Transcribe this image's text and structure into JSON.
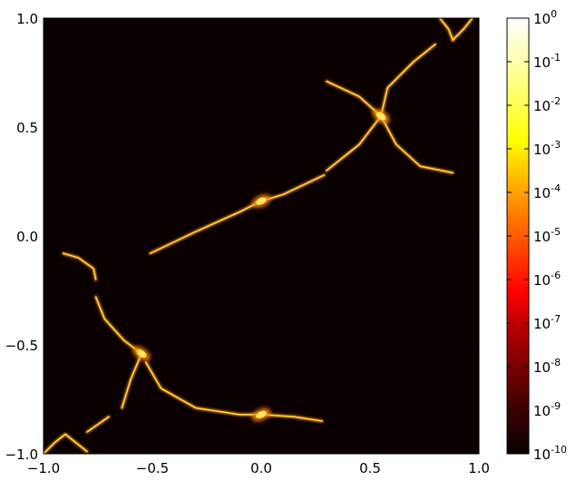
{
  "chart_data": {
    "type": "heatmap",
    "title": "",
    "xlabel": "",
    "ylabel": "",
    "xlim": [
      -1.0,
      1.0
    ],
    "ylim": [
      -1.0,
      1.0
    ],
    "x_ticks": [
      -1.0,
      -0.5,
      0.0,
      0.5,
      1.0
    ],
    "x_tick_labels": [
      "−1.0",
      "−0.5",
      "0.0",
      "0.5",
      "1.0"
    ],
    "y_ticks": [
      -1.0,
      -0.5,
      0.0,
      0.5,
      1.0
    ],
    "y_tick_labels": [
      "−1.0",
      "−0.5",
      "0.0",
      "0.5",
      "1.0"
    ],
    "grid": false,
    "background_value": 1e-10,
    "colorbar": {
      "scale": "log",
      "colormap": "hot",
      "range": [
        1e-10,
        1
      ],
      "tick_exponents": [
        -10,
        -9,
        -8,
        -7,
        -6,
        -5,
        -4,
        -3,
        -2,
        -1,
        0
      ],
      "tick_labels": [
        "10^-10",
        "10^-9",
        "10^-8",
        "10^-7",
        "10^-6",
        "10^-5",
        "10^-4",
        "10^-3",
        "10^-2",
        "10^-1",
        "10^0"
      ]
    },
    "curves": [
      {
        "name": "central-diagonal",
        "points": [
          [
            -0.51,
            -0.08
          ],
          [
            -0.3,
            0.02
          ],
          [
            -0.1,
            0.11
          ],
          [
            0.0,
            0.16
          ],
          [
            0.1,
            0.19
          ],
          [
            0.29,
            0.28
          ]
        ]
      },
      {
        "name": "upper-right-branch-top",
        "points": [
          [
            0.55,
            0.55
          ],
          [
            0.58,
            0.68
          ],
          [
            0.7,
            0.8
          ],
          [
            0.8,
            0.88
          ]
        ]
      },
      {
        "name": "upper-right-branch-left",
        "points": [
          [
            0.3,
            0.71
          ],
          [
            0.45,
            0.64
          ],
          [
            0.55,
            0.55
          ]
        ]
      },
      {
        "name": "upper-right-branch-lower-left",
        "points": [
          [
            0.3,
            0.3
          ],
          [
            0.45,
            0.42
          ],
          [
            0.55,
            0.55
          ]
        ]
      },
      {
        "name": "upper-right-branch-lower-right",
        "points": [
          [
            0.55,
            0.55
          ],
          [
            0.62,
            0.42
          ],
          [
            0.73,
            0.32
          ],
          [
            0.88,
            0.29
          ]
        ]
      },
      {
        "name": "top-corner-a",
        "points": [
          [
            0.82,
            1.0
          ],
          [
            0.86,
            0.95
          ],
          [
            0.88,
            0.9
          ]
        ]
      },
      {
        "name": "top-corner-b",
        "points": [
          [
            0.88,
            0.9
          ],
          [
            0.93,
            0.95
          ],
          [
            0.97,
            1.0
          ]
        ]
      },
      {
        "name": "lower-left-branch-upper",
        "points": [
          [
            -0.91,
            -0.08
          ],
          [
            -0.84,
            -0.1
          ],
          [
            -0.77,
            -0.15
          ],
          [
            -0.76,
            -0.2
          ]
        ]
      },
      {
        "name": "lower-left-branch-mid",
        "points": [
          [
            -0.76,
            -0.28
          ],
          [
            -0.72,
            -0.38
          ],
          [
            -0.63,
            -0.48
          ],
          [
            -0.55,
            -0.54
          ]
        ]
      },
      {
        "name": "lower-left-branch-down",
        "points": [
          [
            -0.55,
            -0.54
          ],
          [
            -0.6,
            -0.66
          ],
          [
            -0.64,
            -0.79
          ]
        ]
      },
      {
        "name": "lower-left-branch-right",
        "points": [
          [
            -0.53,
            -0.58
          ],
          [
            -0.46,
            -0.7
          ],
          [
            -0.3,
            -0.79
          ],
          [
            -0.1,
            -0.82
          ],
          [
            0.0,
            -0.82
          ],
          [
            0.15,
            -0.83
          ],
          [
            0.28,
            -0.85
          ]
        ]
      },
      {
        "name": "lower-left-corner-a",
        "points": [
          [
            -1.0,
            -1.0
          ],
          [
            -0.95,
            -0.95
          ],
          [
            -0.9,
            -0.91
          ],
          [
            -0.8,
            -0.99
          ]
        ]
      },
      {
        "name": "lower-left-corner-b",
        "points": [
          [
            -0.8,
            -0.9
          ],
          [
            -0.7,
            -0.83
          ]
        ]
      }
    ],
    "hotspots": [
      {
        "x": 0.0,
        "y": 0.16,
        "peak_exponent": -3.5
      },
      {
        "x": 0.55,
        "y": 0.55,
        "peak_exponent": -3.5
      },
      {
        "x": -0.55,
        "y": -0.54,
        "peak_exponent": -3.5
      },
      {
        "x": 0.0,
        "y": -0.82,
        "peak_exponent": -4
      }
    ]
  }
}
